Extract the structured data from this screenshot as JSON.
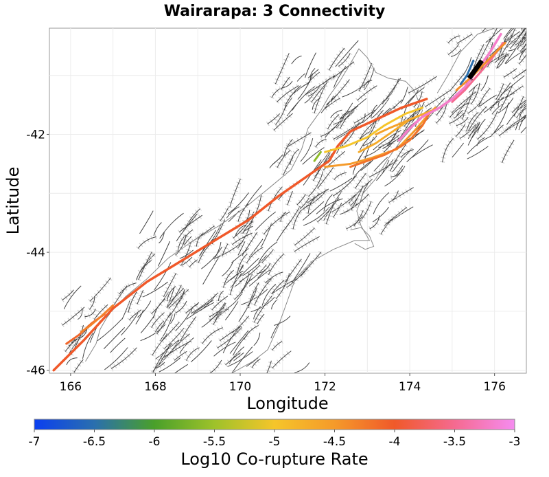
{
  "chart_data": {
    "type": "map",
    "title": "Wairarapa: 3 Connectivity",
    "xlabel": "Longitude",
    "ylabel": "Latitude",
    "xlim": [
      165.5,
      176.75
    ],
    "ylim": [
      -46.05,
      -40.2
    ],
    "xticks": [
      166,
      168,
      170,
      172,
      174,
      176
    ],
    "yticks": [
      -42,
      -44,
      -46
    ],
    "grid": true,
    "colorbar": {
      "label": "Log10 Co-rupture Rate",
      "range": [
        -7,
        -3
      ],
      "ticks": [
        "-7",
        "-6.5",
        "-6",
        "-5.5",
        "-5",
        "-4.5",
        "-4",
        "-3.5",
        "-3"
      ],
      "stops": [
        {
          "value": -7,
          "color": "#0a3ff0"
        },
        {
          "value": -6.5,
          "color": "#2a6fae"
        },
        {
          "value": -6,
          "color": "#4aa02a"
        },
        {
          "value": -5.5,
          "color": "#9ec22a"
        },
        {
          "value": -5,
          "color": "#f5c52a"
        },
        {
          "value": -4.5,
          "color": "#f59a2a"
        },
        {
          "value": -4,
          "color": "#f0592a"
        },
        {
          "value": -3.5,
          "color": "#f56a90"
        },
        {
          "value": -3,
          "color": "#f58cf0"
        }
      ]
    },
    "coastline": [
      [
        [
          166.35,
          -45.85
        ],
        [
          166.6,
          -45.55
        ],
        [
          166.7,
          -45.3
        ],
        [
          166.9,
          -45.05
        ],
        [
          167.3,
          -44.75
        ],
        [
          167.8,
          -44.45
        ],
        [
          168.3,
          -44.1
        ],
        [
          168.9,
          -43.8
        ],
        [
          169.5,
          -43.55
        ],
        [
          170.1,
          -43.25
        ],
        [
          170.7,
          -42.9
        ],
        [
          171.2,
          -42.6
        ],
        [
          171.45,
          -42.25
        ],
        [
          171.6,
          -41.9
        ],
        [
          171.9,
          -41.6
        ],
        [
          172.1,
          -41.35
        ],
        [
          172.35,
          -41.1
        ],
        [
          172.6,
          -40.8
        ],
        [
          172.8,
          -40.55
        ],
        [
          173.0,
          -40.7
        ],
        [
          173.2,
          -40.95
        ],
        [
          173.5,
          -41.05
        ],
        [
          173.9,
          -41.1
        ],
        [
          174.1,
          -41.25
        ],
        [
          174.3,
          -41.6
        ],
        [
          174.1,
          -41.85
        ],
        [
          173.8,
          -42.1
        ],
        [
          173.5,
          -42.4
        ],
        [
          173.2,
          -42.75
        ],
        [
          172.9,
          -43.0
        ],
        [
          172.75,
          -43.3
        ],
        [
          172.85,
          -43.55
        ],
        [
          173.05,
          -43.8
        ],
        [
          172.7,
          -43.8
        ],
        [
          172.2,
          -43.95
        ],
        [
          171.7,
          -44.15
        ],
        [
          171.3,
          -44.45
        ],
        [
          171.1,
          -44.85
        ],
        [
          170.9,
          -45.25
        ],
        [
          170.65,
          -45.65
        ],
        [
          170.3,
          -45.85
        ],
        [
          169.8,
          -46.05
        ],
        [
          169.3,
          -46.15
        ],
        [
          168.7,
          -46.25
        ],
        [
          168.2,
          -46.3
        ],
        [
          167.6,
          -46.2
        ],
        [
          167.0,
          -46.15
        ],
        [
          166.55,
          -46.05
        ]
      ],
      [
        [
          174.65,
          -41.3
        ],
        [
          174.9,
          -41.0
        ],
        [
          175.2,
          -40.6
        ],
        [
          175.6,
          -40.3
        ],
        [
          176.0,
          -40.2
        ]
      ],
      [
        [
          172.6,
          -43.62
        ],
        [
          172.85,
          -43.58
        ],
        [
          173.05,
          -43.72
        ],
        [
          173.15,
          -43.9
        ],
        [
          172.95,
          -43.95
        ],
        [
          172.7,
          -43.85
        ]
      ]
    ],
    "ruptures": [
      {
        "rate": -4.0,
        "width": 3.5,
        "points": [
          [
            165.6,
            -46.0
          ],
          [
            166.3,
            -45.5
          ],
          [
            167.0,
            -44.95
          ],
          [
            167.8,
            -44.5
          ],
          [
            168.6,
            -44.15
          ],
          [
            169.4,
            -43.8
          ],
          [
            170.2,
            -43.45
          ],
          [
            170.9,
            -43.05
          ],
          [
            171.5,
            -42.75
          ],
          [
            172.1,
            -42.45
          ],
          [
            172.3,
            -42.2
          ],
          [
            172.6,
            -41.95
          ],
          [
            173.2,
            -41.75
          ],
          [
            173.8,
            -41.55
          ],
          [
            174.4,
            -41.4
          ]
        ]
      },
      {
        "rate": -4.1,
        "width": 3.0,
        "points": [
          [
            165.9,
            -45.55
          ],
          [
            166.2,
            -45.4
          ],
          [
            166.5,
            -45.2
          ],
          [
            166.8,
            -45.05
          ]
        ]
      },
      {
        "rate": -4.3,
        "width": 3.0,
        "points": [
          [
            166.25,
            -45.35
          ],
          [
            166.45,
            -45.25
          ],
          [
            166.7,
            -45.1
          ],
          [
            167.0,
            -44.9
          ]
        ]
      },
      {
        "rate": -4.5,
        "width": 3.0,
        "points": [
          [
            172.0,
            -42.55
          ],
          [
            172.6,
            -42.5
          ],
          [
            173.1,
            -42.4
          ],
          [
            173.7,
            -42.25
          ],
          [
            174.1,
            -41.95
          ],
          [
            174.4,
            -41.7
          ],
          [
            174.6,
            -41.55
          ]
        ]
      },
      {
        "rate": -4.2,
        "width": 3.0,
        "points": [
          [
            172.6,
            -42.55
          ],
          [
            173.0,
            -42.45
          ],
          [
            173.4,
            -42.35
          ],
          [
            173.8,
            -42.2
          ],
          [
            174.0,
            -42.1
          ],
          [
            174.3,
            -41.85
          ],
          [
            174.5,
            -41.6
          ]
        ]
      },
      {
        "rate": -5.0,
        "width": 3.0,
        "points": [
          [
            172.0,
            -42.3
          ],
          [
            172.5,
            -42.2
          ],
          [
            173.0,
            -42.05
          ],
          [
            173.4,
            -41.85
          ],
          [
            173.9,
            -41.65
          ],
          [
            174.3,
            -41.55
          ]
        ]
      },
      {
        "rate": -4.7,
        "width": 3.0,
        "points": [
          [
            172.8,
            -42.3
          ],
          [
            173.2,
            -42.15
          ],
          [
            173.6,
            -41.95
          ],
          [
            174.0,
            -41.75
          ],
          [
            174.5,
            -41.6
          ]
        ]
      },
      {
        "rate": -4.6,
        "width": 3.0,
        "points": [
          [
            173.2,
            -42.0
          ],
          [
            173.5,
            -41.9
          ],
          [
            174.0,
            -41.75
          ]
        ]
      },
      {
        "rate": -5.6,
        "width": 3.0,
        "points": [
          [
            171.75,
            -42.45
          ],
          [
            171.9,
            -42.3
          ]
        ]
      },
      {
        "rate": -3.2,
        "width": 3.5,
        "points": [
          [
            173.75,
            -42.1
          ],
          [
            174.0,
            -41.9
          ],
          [
            174.3,
            -41.7
          ],
          [
            174.7,
            -41.55
          ],
          [
            175.0,
            -41.4
          ],
          [
            175.3,
            -41.2
          ],
          [
            175.6,
            -40.9
          ],
          [
            175.9,
            -40.6
          ],
          [
            176.15,
            -40.3
          ]
        ]
      },
      {
        "rate": -3.5,
        "width": 3.0,
        "points": [
          [
            175.0,
            -41.45
          ],
          [
            175.3,
            -41.25
          ],
          [
            175.6,
            -41.0
          ],
          [
            175.9,
            -40.75
          ],
          [
            176.2,
            -40.45
          ]
        ]
      },
      {
        "rate": -4.4,
        "width": 3.0,
        "points": [
          [
            175.1,
            -41.25
          ],
          [
            175.5,
            -41.0
          ],
          [
            175.9,
            -40.7
          ],
          [
            176.25,
            -40.45
          ]
        ]
      },
      {
        "rate": -6.5,
        "width": 3.0,
        "points": [
          [
            175.2,
            -41.15
          ],
          [
            175.35,
            -41.0
          ],
          [
            175.5,
            -40.75
          ]
        ]
      }
    ],
    "highlight_fault": {
      "label": "",
      "color": "#000000",
      "points": [
        [
          175.4,
          -41.05
        ],
        [
          175.55,
          -40.9
        ],
        [
          175.7,
          -40.75
        ]
      ]
    }
  }
}
